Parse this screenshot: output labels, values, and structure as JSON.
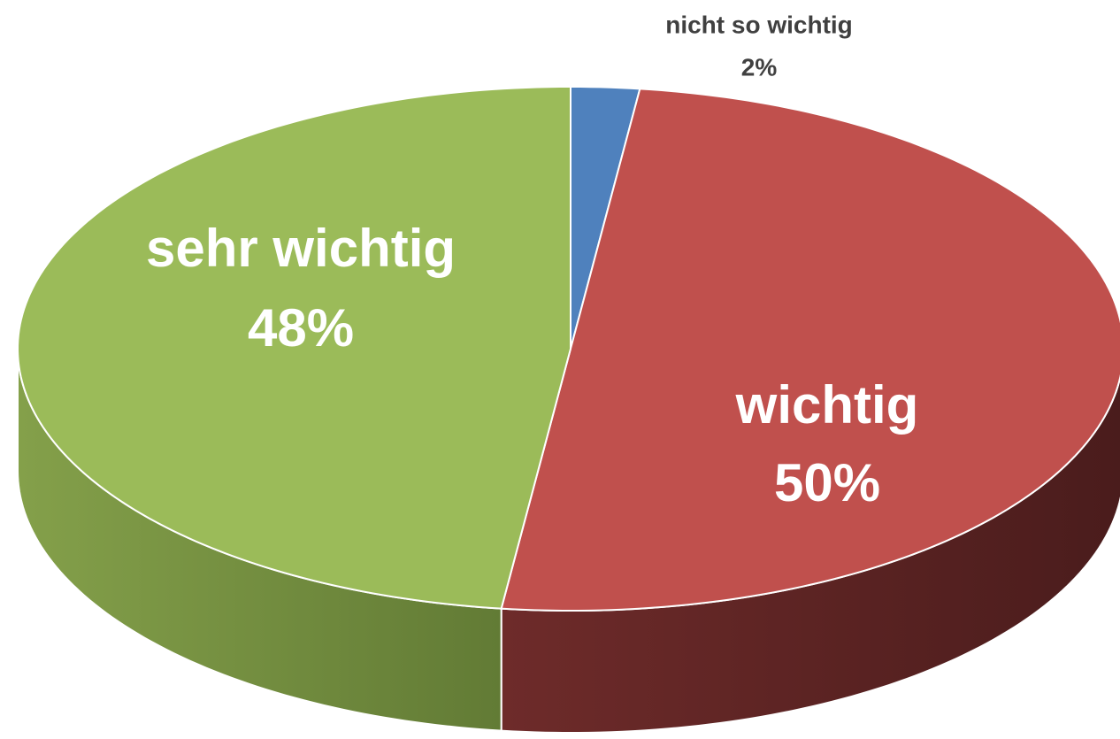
{
  "chart_data": {
    "type": "pie",
    "categories": [
      "nicht so wichtig",
      "wichtig",
      "sehr wichtig"
    ],
    "values": [
      2,
      50,
      48
    ],
    "value_labels": [
      "2%",
      "50%",
      "48%"
    ],
    "colors": [
      "#4f81bd",
      "#c0504d",
      "#9bbb59"
    ],
    "side_colors": [
      [
        "#3a5f8c",
        "#2c4a6e"
      ],
      [
        "#6e2b2a",
        "#4a1c1c"
      ],
      [
        "#84a04a",
        "#627b35"
      ]
    ]
  }
}
